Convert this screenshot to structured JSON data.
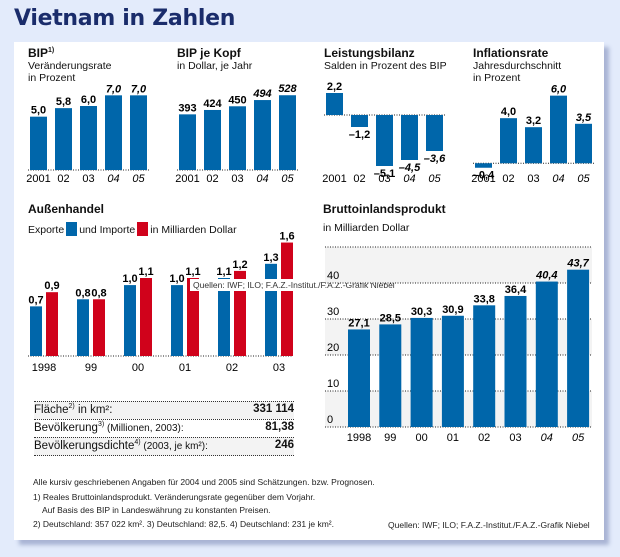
{
  "title": "Vietnam in Zahlen",
  "colors": {
    "blue": "#0066aa",
    "red": "#d0021b",
    "title": "#1a2c6b"
  },
  "chart_data": [
    {
      "id": "bip",
      "type": "bar",
      "title": "BIP",
      "title_sup": "1)",
      "subtitle": [
        "Veränderungsrate",
        "in Prozent"
      ],
      "categories": [
        "2001",
        "02",
        "03",
        "04",
        "05"
      ],
      "italic": [
        false,
        false,
        false,
        true,
        true
      ],
      "values": [
        5.0,
        5.8,
        6.0,
        7.0,
        7.0
      ],
      "labels": [
        "5,0",
        "5,8",
        "6,0",
        "7,0",
        "7,0"
      ],
      "ylim": [
        0,
        7.5
      ]
    },
    {
      "id": "bip_kopf",
      "type": "bar",
      "title": "BIP je Kopf",
      "subtitle": [
        "in Dollar, je Jahr"
      ],
      "categories": [
        "2001",
        "02",
        "03",
        "04",
        "05"
      ],
      "italic": [
        false,
        false,
        false,
        true,
        true
      ],
      "values": [
        393,
        424,
        450,
        494,
        528
      ],
      "labels": [
        "393",
        "424",
        "450",
        "494",
        "528"
      ],
      "ylim": [
        0,
        565
      ]
    },
    {
      "id": "leistungsbilanz",
      "type": "bar",
      "title": "Leistungsbilanz",
      "subtitle": [
        "Salden in Prozent des BIP"
      ],
      "categories": [
        "2001",
        "02",
        "03",
        "04",
        "05"
      ],
      "italic": [
        false,
        false,
        false,
        true,
        true
      ],
      "values": [
        2.2,
        -1.2,
        -5.1,
        -4.5,
        -3.6
      ],
      "labels": [
        "2,2",
        "–1,2",
        "–5,1",
        "–4,5",
        "–3,6"
      ],
      "ylim": [
        -5.5,
        2.5
      ]
    },
    {
      "id": "inflation",
      "type": "bar",
      "title": "Inflationsrate",
      "subtitle": [
        "Jahresdurchschnitt",
        "in Prozent"
      ],
      "categories": [
        "2001",
        "02",
        "03",
        "04",
        "05"
      ],
      "italic": [
        false,
        false,
        false,
        true,
        true
      ],
      "values": [
        -0.4,
        4.0,
        3.2,
        6.0,
        3.5
      ],
      "labels": [
        "–0,4",
        "4,0",
        "3,2",
        "6,0",
        "3,5"
      ],
      "ylim": [
        -0.6,
        6.5
      ]
    },
    {
      "id": "aussenhandel",
      "type": "bar",
      "title": "Außenhandel",
      "legend": {
        "prefix": "Exporte",
        "middle": "und Importe",
        "suffix": "in Milliarden Dollar"
      },
      "categories": [
        "1998",
        "99",
        "00",
        "01",
        "02",
        "03"
      ],
      "series": [
        {
          "name": "Exporte",
          "values": [
            0.7,
            0.8,
            1.0,
            1.0,
            1.1,
            1.3
          ],
          "labels": [
            "0,7",
            "0,8",
            "1,0",
            "1,0",
            "1,1",
            "1,3"
          ]
        },
        {
          "name": "Importe",
          "values": [
            0.9,
            0.8,
            1.1,
            1.1,
            1.2,
            1.6
          ],
          "labels": [
            "0,9",
            "0,8",
            "1,1",
            "1,1",
            "1,2",
            "1,6"
          ]
        }
      ],
      "ylim": [
        0,
        1.65
      ]
    },
    {
      "id": "bruttoinlandsprodukt",
      "type": "bar",
      "title": "Bruttoinlandsprodukt",
      "subtitle": [
        "in Milliarden Dollar"
      ],
      "categories": [
        "1998",
        "99",
        "00",
        "01",
        "02",
        "03",
        "04",
        "05"
      ],
      "italic": [
        false,
        false,
        false,
        false,
        false,
        false,
        true,
        true
      ],
      "values": [
        27.1,
        28.5,
        30.3,
        30.9,
        33.8,
        36.4,
        40.4,
        43.7
      ],
      "labels": [
        "27,1",
        "28,5",
        "30,3",
        "30,9",
        "33,8",
        "36,4",
        "40,4",
        "43,7"
      ],
      "yticks": [
        "0",
        "10",
        "20",
        "30",
        "40"
      ],
      "ylim": [
        0,
        50
      ],
      "grid": true
    }
  ],
  "info_table": [
    {
      "label": "Fläche",
      "sup": "2)",
      "rest": " in km²:",
      "value": "331 114"
    },
    {
      "label": "Bevölkerung",
      "sup": "3)",
      "rest": " (Millionen, 2003):",
      "value": "81,38"
    },
    {
      "label": "Bevölkerungsdichte",
      "sup": "4)",
      "rest": " (2003, je km²):",
      "value": "246"
    }
  ],
  "overlay_source": "Quellen: IWF; ILO; F.A.Z.-Institut./F.A.Z.-Grafik Niebel",
  "footnotes": [
    "Alle kursiv geschriebenen Angaben für 2004 und 2005 sind Schätzungen. bzw. Prognosen.",
    "1) Reales Bruttoinlandsprodukt. Veränderungsrate gegenüber dem Vorjahr.",
    "Auf Basis des BIP in Landeswährung zu konstanten Preisen.",
    "2) Deutschland: 357 022 km².  3) Deutschland: 82,5.  4) Deutschland: 231 je km²."
  ],
  "source": "Quellen: IWF; ILO; F.A.Z.-Institut./F.A.Z.-Grafik Niebel"
}
